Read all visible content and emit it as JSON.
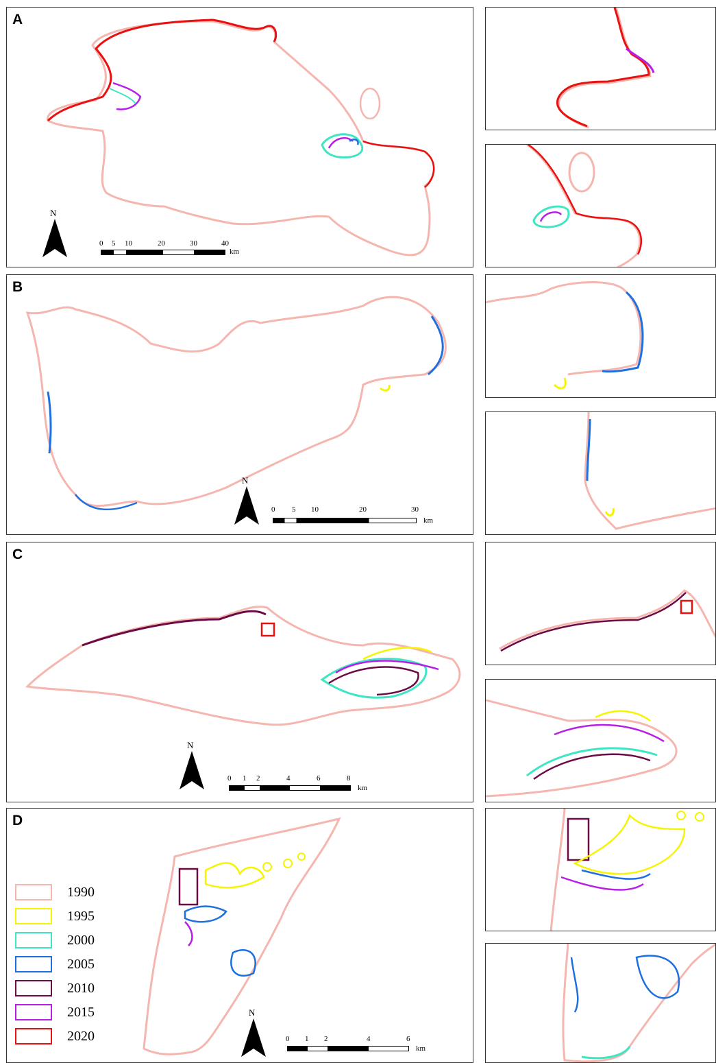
{
  "panels": [
    {
      "id": "A",
      "scale": {
        "ticks": [
          "0",
          "5",
          "10",
          "20",
          "30",
          "40"
        ],
        "unit": "km"
      }
    },
    {
      "id": "B",
      "scale": {
        "ticks": [
          "0",
          "5",
          "10",
          "20",
          "30"
        ],
        "unit": "km"
      }
    },
    {
      "id": "C",
      "scale": {
        "ticks": [
          "0",
          "1",
          "2",
          "4",
          "6",
          "8"
        ],
        "unit": "km"
      }
    },
    {
      "id": "D",
      "scale": {
        "ticks": [
          "0",
          "1",
          "2",
          "4",
          "6"
        ],
        "unit": "km"
      }
    }
  ],
  "north_label": "N",
  "legend": [
    {
      "year": "1990",
      "color": "#f4b6ae"
    },
    {
      "year": "1995",
      "color": "#f5f500"
    },
    {
      "year": "2000",
      "color": "#3ee6c4"
    },
    {
      "year": "2005",
      "color": "#1e6fe0"
    },
    {
      "year": "2010",
      "color": "#6b0a45"
    },
    {
      "year": "2015",
      "color": "#b81ee6"
    },
    {
      "year": "2020",
      "color": "#e81010"
    }
  ]
}
